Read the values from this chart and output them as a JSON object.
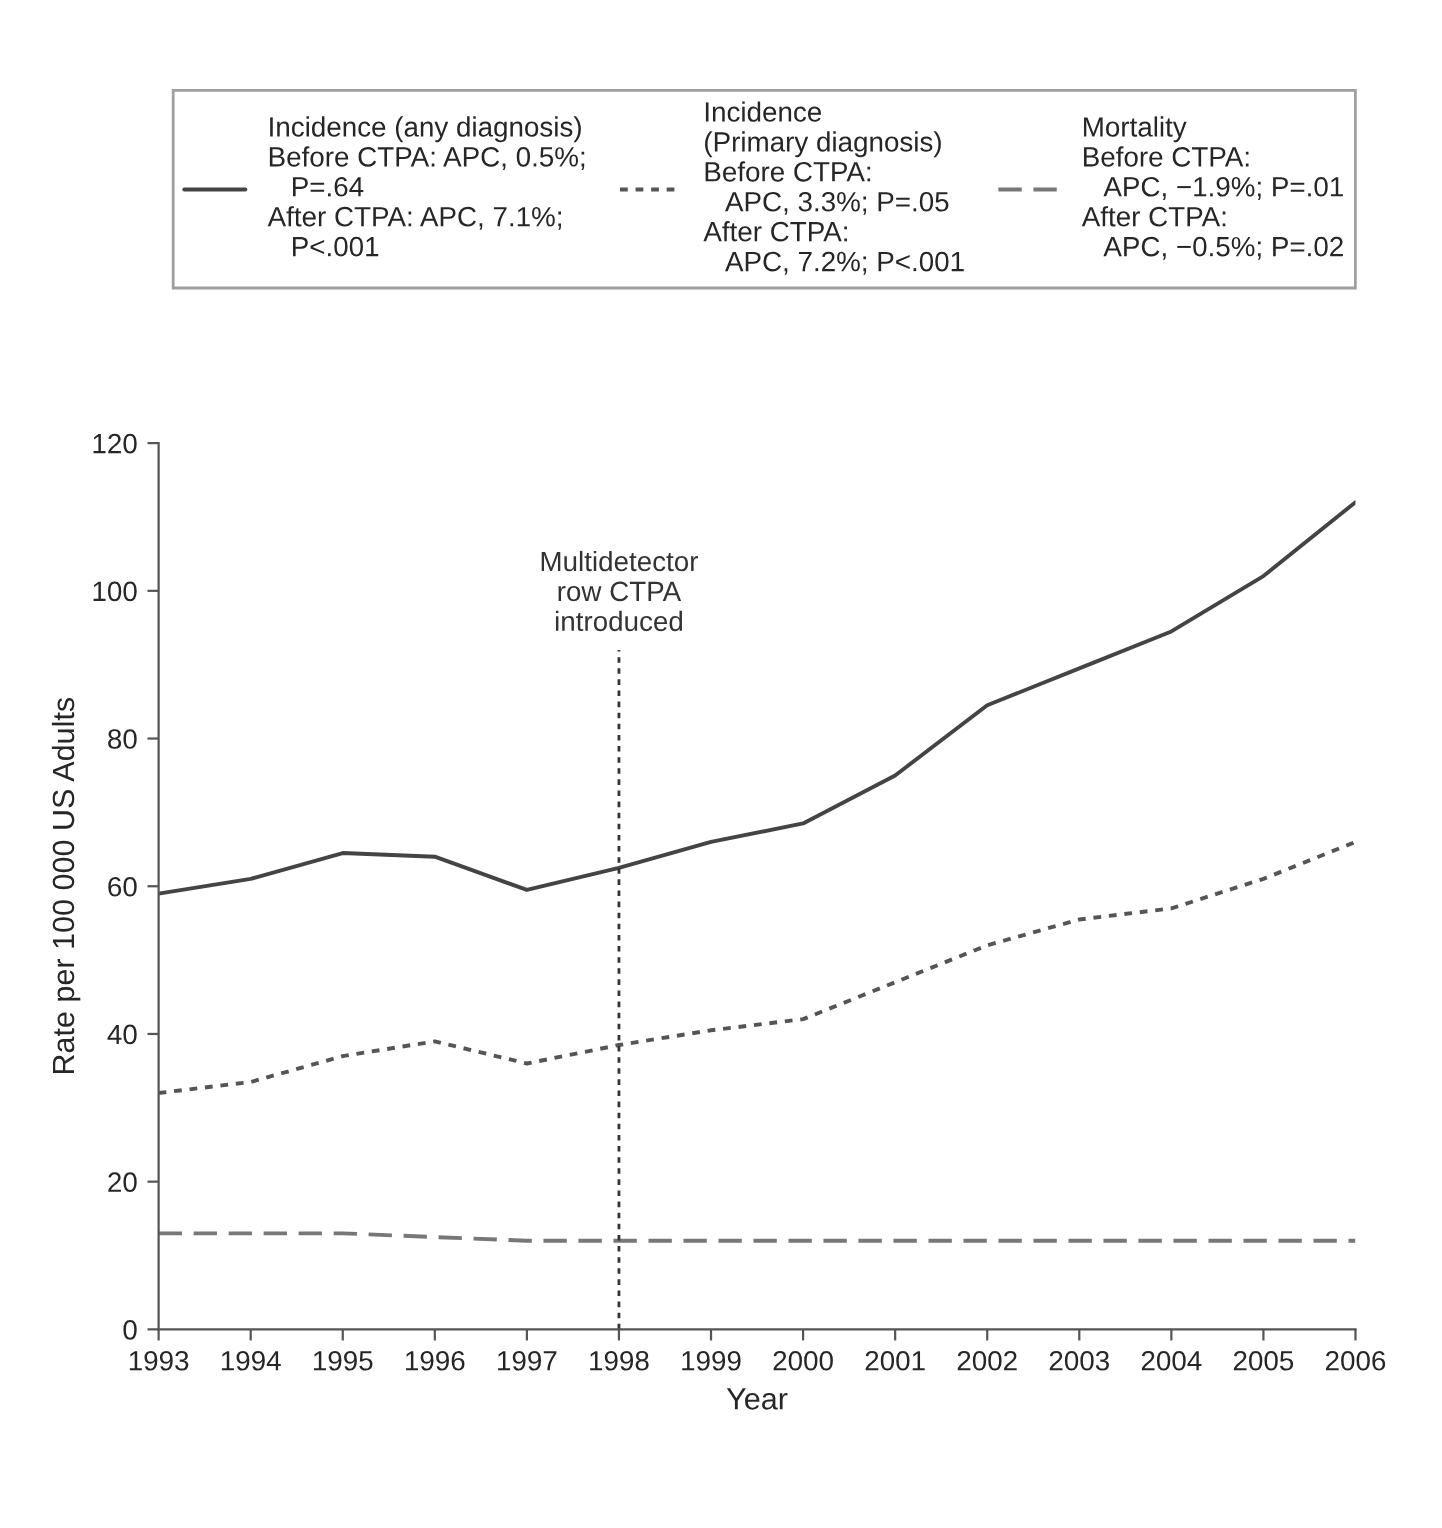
{
  "chart_data": {
    "type": "line",
    "xlabel": "Year",
    "ylabel": "Rate per 100 000 US Adults",
    "x": [
      1993,
      1994,
      1995,
      1996,
      1997,
      1998,
      1999,
      2000,
      2001,
      2002,
      2003,
      2004,
      2005,
      2006
    ],
    "series": [
      {
        "name": "Incidence (any diagnosis)\nBefore CTPA: APC, 0.5%;\n   P=.64\nAfter CTPA: APC, 7.1%;\n   P<.001",
        "color": "#444444",
        "line_style": "solid",
        "values": [
          59,
          61,
          64.5,
          64,
          59.5,
          62.5,
          66,
          68.5,
          75,
          84.5,
          89.5,
          94.5,
          102,
          112
        ]
      },
      {
        "name": "Incidence\n(Primary diagnosis)\nBefore CTPA:\n   APC, 3.3%; P=.05\nAfter CTPA:\n   APC, 7.2%; P<.001",
        "color": "#555555",
        "line_style": "dotted",
        "values": [
          32,
          33.5,
          37,
          39,
          36,
          38.5,
          40.5,
          42,
          47,
          52,
          55.5,
          57,
          61,
          66
        ]
      },
      {
        "name": "Mortality\nBefore CTPA:\n   APC, −1.9%; P=.01\nAfter CTPA:\n   APC, −0.5%; P=.02",
        "color": "#777777",
        "line_style": "dashed",
        "values": [
          13,
          13,
          13,
          12.5,
          12,
          12,
          12,
          12,
          12,
          12,
          12,
          12,
          12,
          12
        ]
      }
    ],
    "xlim": [
      1993,
      2006
    ],
    "xticks": [
      1993,
      1994,
      1995,
      1996,
      1997,
      1998,
      1999,
      2000,
      2001,
      2002,
      2003,
      2004,
      2005,
      2006
    ],
    "ylim": [
      0,
      120
    ],
    "yticks": [
      0,
      20,
      40,
      60,
      80,
      100,
      120
    ],
    "ref_lines": [
      {
        "axis": "x",
        "value": 1998,
        "label": "Multidetector\nrow CTPA\nintroduced",
        "line_style": "dotted",
        "color": "#333333"
      }
    ],
    "grid": false,
    "legend": "top",
    "marker": "none"
  }
}
